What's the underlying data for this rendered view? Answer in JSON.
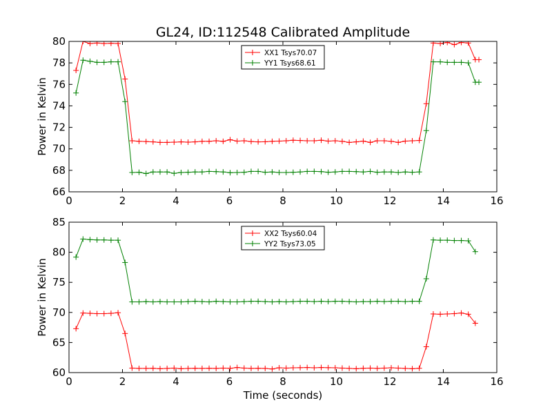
{
  "figure_title": "GL24, ID:112548 Calibrated Amplitude",
  "colors": {
    "xx": "#ff0000",
    "yy": "#008000",
    "axes": "#000000",
    "background": "#ffffff"
  },
  "chart_data": [
    {
      "type": "line",
      "title": "GL24, ID:112548 Calibrated Amplitude",
      "xlabel": "",
      "ylabel": "Power in Kelvin",
      "xlim": [
        0,
        16
      ],
      "ylim": [
        66,
        80
      ],
      "xticks": [
        0,
        2,
        4,
        6,
        8,
        10,
        12,
        14,
        16
      ],
      "yticks": [
        66,
        68,
        70,
        72,
        74,
        76,
        78,
        80
      ],
      "grid": false,
      "legend_position": "top-center",
      "marker": "+",
      "series": [
        {
          "name": "XX1 Tsys70.07",
          "color": "#ff0000",
          "x": [
            0.262,
            0.524,
            0.786,
            1.048,
            1.31,
            1.572,
            1.834,
            2.096,
            2.358,
            2.62,
            2.882,
            3.144,
            3.406,
            3.668,
            3.93,
            4.192,
            4.454,
            4.716,
            4.978,
            5.24,
            5.502,
            5.764,
            6.026,
            6.288,
            6.55,
            6.812,
            7.074,
            7.336,
            7.598,
            7.86,
            8.122,
            8.384,
            8.646,
            8.908,
            9.17,
            9.432,
            9.694,
            9.956,
            10.218,
            10.48,
            10.742,
            11.004,
            11.266,
            11.528,
            11.79,
            12.052,
            12.314,
            12.576,
            12.838,
            13.1,
            13.362,
            13.624,
            13.886,
            14.148,
            14.41,
            14.672,
            14.934,
            15.196,
            15.33
          ],
          "y": [
            77.3,
            80.0,
            79.8,
            79.85,
            79.8,
            79.82,
            79.8,
            76.5,
            70.75,
            70.7,
            70.68,
            70.65,
            70.6,
            70.6,
            70.62,
            70.65,
            70.62,
            70.65,
            70.7,
            70.7,
            70.75,
            70.7,
            70.85,
            70.72,
            70.75,
            70.68,
            70.65,
            70.66,
            70.7,
            70.72,
            70.75,
            70.8,
            70.78,
            70.75,
            70.75,
            70.8,
            70.72,
            70.75,
            70.7,
            70.6,
            70.65,
            70.72,
            70.6,
            70.75,
            70.75,
            70.7,
            70.6,
            70.72,
            70.75,
            70.78,
            74.2,
            79.85,
            79.8,
            79.9,
            79.7,
            79.9,
            79.85,
            78.3,
            78.3
          ]
        },
        {
          "name": "YY1 Tsys68.61",
          "color": "#008000",
          "x": [
            0.262,
            0.524,
            0.786,
            1.048,
            1.31,
            1.572,
            1.834,
            2.096,
            2.358,
            2.62,
            2.882,
            3.144,
            3.406,
            3.668,
            3.93,
            4.192,
            4.454,
            4.716,
            4.978,
            5.24,
            5.502,
            5.764,
            6.026,
            6.288,
            6.55,
            6.812,
            7.074,
            7.336,
            7.598,
            7.86,
            8.122,
            8.384,
            8.646,
            8.908,
            9.17,
            9.432,
            9.694,
            9.956,
            10.218,
            10.48,
            10.742,
            11.004,
            11.266,
            11.528,
            11.79,
            12.052,
            12.314,
            12.576,
            12.838,
            13.1,
            13.362,
            13.624,
            13.886,
            14.148,
            14.41,
            14.672,
            14.934,
            15.196,
            15.33
          ],
          "y": [
            75.2,
            78.25,
            78.15,
            78.05,
            78.05,
            78.1,
            78.1,
            74.4,
            67.8,
            67.82,
            67.7,
            67.85,
            67.85,
            67.85,
            67.72,
            67.8,
            67.82,
            67.85,
            67.85,
            67.9,
            67.88,
            67.85,
            67.78,
            67.8,
            67.82,
            67.9,
            67.9,
            67.82,
            67.85,
            67.8,
            67.8,
            67.82,
            67.85,
            67.9,
            67.9,
            67.88,
            67.82,
            67.85,
            67.9,
            67.9,
            67.88,
            67.85,
            67.9,
            67.82,
            67.85,
            67.85,
            67.8,
            67.85,
            67.82,
            67.85,
            71.7,
            78.1,
            78.1,
            78.05,
            78.05,
            78.05,
            78.0,
            76.2,
            76.2
          ]
        }
      ]
    },
    {
      "type": "line",
      "title": "",
      "xlabel": "Time (seconds)",
      "ylabel": "Power in Kelvin",
      "xlim": [
        0,
        16
      ],
      "ylim": [
        60,
        85
      ],
      "xticks": [
        0,
        2,
        4,
        6,
        8,
        10,
        12,
        14,
        16
      ],
      "yticks": [
        60,
        65,
        70,
        75,
        80,
        85
      ],
      "grid": false,
      "legend_position": "top-center",
      "marker": "+",
      "series": [
        {
          "name": "XX2 Tsys60.04",
          "color": "#ff0000",
          "x": [
            0.262,
            0.524,
            0.786,
            1.048,
            1.31,
            1.572,
            1.834,
            2.096,
            2.358,
            2.62,
            2.882,
            3.144,
            3.406,
            3.668,
            3.93,
            4.192,
            4.454,
            4.716,
            4.978,
            5.24,
            5.502,
            5.764,
            6.026,
            6.288,
            6.55,
            6.812,
            7.074,
            7.336,
            7.598,
            7.86,
            8.122,
            8.384,
            8.646,
            8.908,
            9.17,
            9.432,
            9.694,
            9.956,
            10.218,
            10.48,
            10.742,
            11.004,
            11.266,
            11.528,
            11.79,
            12.052,
            12.314,
            12.576,
            12.838,
            13.1,
            13.362,
            13.624,
            13.886,
            14.148,
            14.41,
            14.672,
            14.934,
            15.196
          ],
          "y": [
            67.3,
            69.9,
            69.85,
            69.8,
            69.8,
            69.85,
            69.95,
            66.5,
            60.75,
            60.7,
            60.7,
            60.72,
            60.65,
            60.7,
            60.75,
            60.65,
            60.7,
            60.72,
            60.7,
            60.72,
            60.7,
            60.75,
            60.72,
            60.85,
            60.75,
            60.7,
            60.72,
            60.7,
            60.6,
            60.8,
            60.75,
            60.8,
            60.82,
            60.85,
            60.8,
            60.85,
            60.82,
            60.8,
            60.75,
            60.7,
            60.65,
            60.72,
            60.75,
            60.7,
            60.75,
            60.8,
            60.75,
            60.7,
            60.65,
            60.72,
            64.3,
            69.75,
            69.7,
            69.75,
            69.8,
            69.9,
            69.7,
            68.2
          ]
        },
        {
          "name": "YY2 Tsys73.05",
          "color": "#008000",
          "x": [
            0.262,
            0.524,
            0.786,
            1.048,
            1.31,
            1.572,
            1.834,
            2.096,
            2.358,
            2.62,
            2.882,
            3.144,
            3.406,
            3.668,
            3.93,
            4.192,
            4.454,
            4.716,
            4.978,
            5.24,
            5.502,
            5.764,
            6.026,
            6.288,
            6.55,
            6.812,
            7.074,
            7.336,
            7.598,
            7.86,
            8.122,
            8.384,
            8.646,
            8.908,
            9.17,
            9.432,
            9.694,
            9.956,
            10.218,
            10.48,
            10.742,
            11.004,
            11.266,
            11.528,
            11.79,
            12.052,
            12.314,
            12.576,
            12.838,
            13.1,
            13.362,
            13.624,
            13.886,
            14.148,
            14.41,
            14.672,
            14.934,
            15.196
          ],
          "y": [
            79.2,
            82.2,
            82.1,
            82.05,
            82.05,
            82.0,
            82.0,
            78.3,
            71.75,
            71.75,
            71.8,
            71.75,
            71.8,
            71.75,
            71.75,
            71.75,
            71.8,
            71.85,
            71.8,
            71.75,
            71.85,
            71.8,
            71.75,
            71.75,
            71.8,
            71.85,
            71.85,
            71.8,
            71.75,
            71.8,
            71.75,
            71.8,
            71.85,
            71.85,
            71.8,
            71.85,
            71.8,
            71.85,
            71.85,
            71.8,
            71.75,
            71.8,
            71.8,
            71.85,
            71.8,
            71.85,
            71.85,
            71.8,
            71.85,
            71.85,
            75.6,
            82.05,
            82.0,
            82.0,
            81.95,
            81.95,
            81.9,
            80.1
          ]
        }
      ]
    }
  ]
}
